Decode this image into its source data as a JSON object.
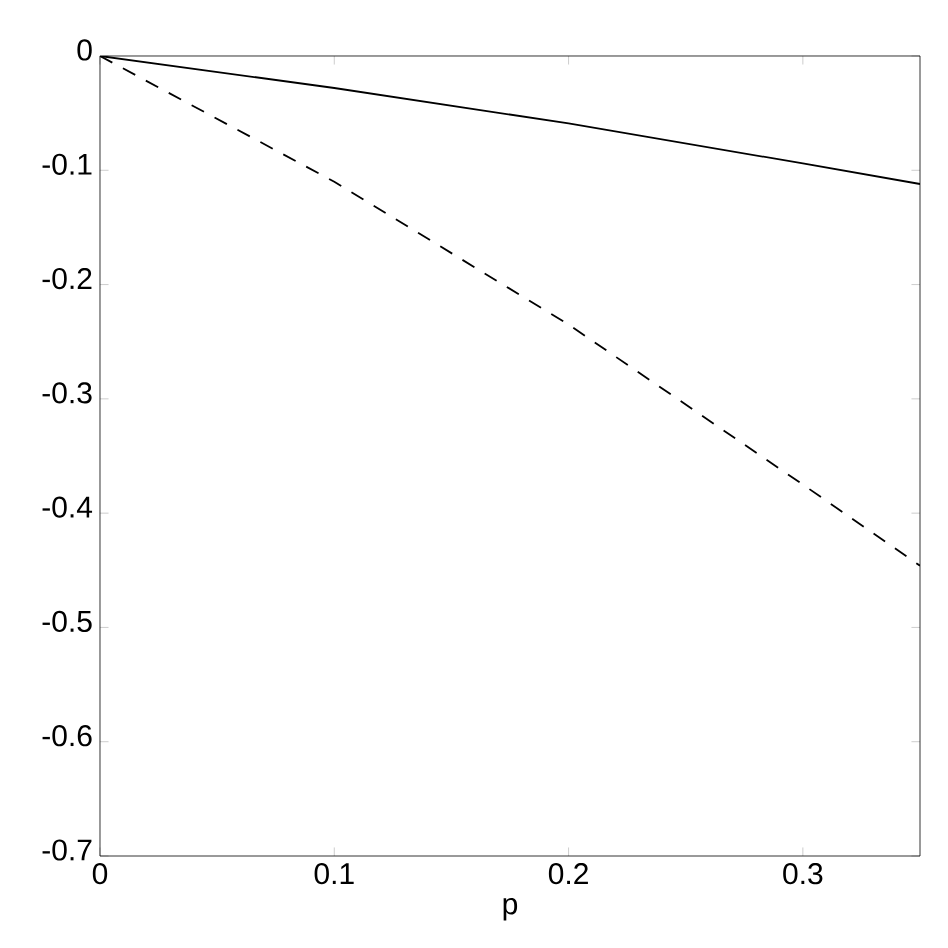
{
  "chart_data": {
    "type": "line",
    "xlabel": "p",
    "x": [
      0,
      0.1,
      0.2,
      0.3,
      0.35
    ],
    "series": [
      {
        "color": "#000000",
        "line_style": "solid",
        "values": [
          0,
          -0.028,
          -0.059,
          -0.094,
          -0.112
        ]
      },
      {
        "color": "#000000",
        "line_style": "dashed",
        "values": [
          0,
          -0.11,
          -0.235,
          -0.375,
          -0.446
        ]
      }
    ],
    "xlim": [
      0,
      0.35
    ],
    "ylim": [
      -0.7,
      0
    ],
    "xticks": [
      0,
      0.1,
      0.2,
      0.3
    ],
    "yticks": [
      -0.7,
      -0.6,
      -0.5,
      -0.4,
      -0.3,
      -0.2,
      -0.1,
      0
    ],
    "marker": "none"
  }
}
